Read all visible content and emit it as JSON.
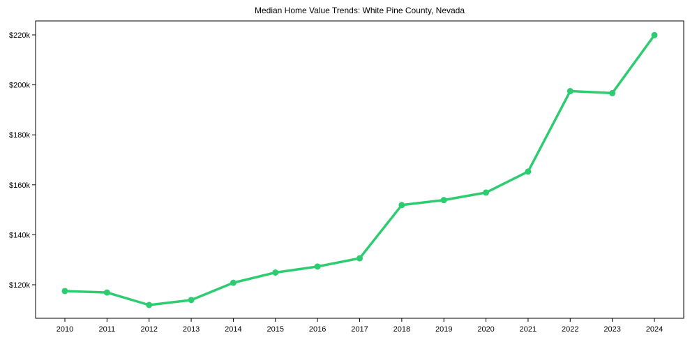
{
  "chart_data": {
    "type": "line",
    "title": "Median Home Value Trends: White Pine County, Nevada",
    "xlabel": "",
    "ylabel": "",
    "x": [
      "2010",
      "2011",
      "2012",
      "2013",
      "2014",
      "2015",
      "2016",
      "2017",
      "2018",
      "2019",
      "2020",
      "2021",
      "2022",
      "2023",
      "2024"
    ],
    "series": [
      {
        "name": "Median Home Value",
        "color": "#2ecc71",
        "marker": "circle",
        "values": [
          117500,
          116900,
          111900,
          113900,
          120800,
          124900,
          127300,
          130600,
          151900,
          153900,
          156900,
          165300,
          197500,
          196700,
          219900
        ]
      }
    ],
    "yticks": [
      120000,
      140000,
      160000,
      180000,
      200000,
      220000
    ],
    "ytick_labels": [
      "$120k",
      "$140k",
      "$160k",
      "$180k",
      "$200k",
      "$220k"
    ],
    "ylim": [
      106800,
      225700
    ],
    "grid": false,
    "legend": null
  }
}
